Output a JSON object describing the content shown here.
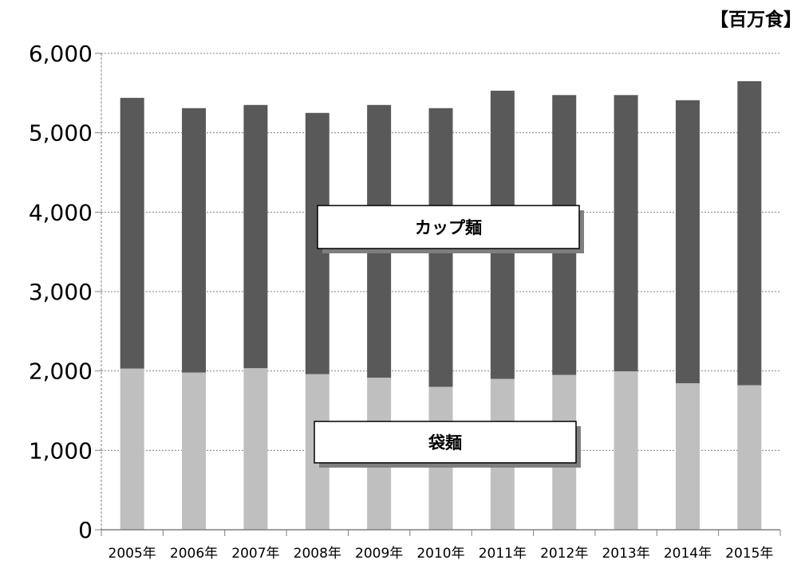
{
  "chart_data": {
    "type": "bar",
    "stacked": true,
    "categories": [
      "2005年",
      "2006年",
      "2007年",
      "2008年",
      "2009年",
      "2010年",
      "2011年",
      "2012年",
      "2013年",
      "2014年",
      "2015年"
    ],
    "series": [
      {
        "name": "袋麺",
        "color": "#bfbfbf",
        "values": [
          2030,
          1980,
          2035,
          1960,
          1915,
          1800,
          1900,
          1950,
          1995,
          1845,
          1820
        ]
      },
      {
        "name": "カップ麺",
        "color": "#595959",
        "values": [
          3410,
          3330,
          3315,
          3290,
          3435,
          3510,
          3630,
          3525,
          3480,
          3565,
          3830
        ]
      }
    ],
    "unit_label": "【百万食】",
    "ylim": [
      0,
      6000
    ],
    "yticks": [
      "0",
      "1,000",
      "2,000",
      "3,000",
      "4,000",
      "5,000",
      "6,000"
    ],
    "grid": true,
    "legend": "inline labels"
  }
}
